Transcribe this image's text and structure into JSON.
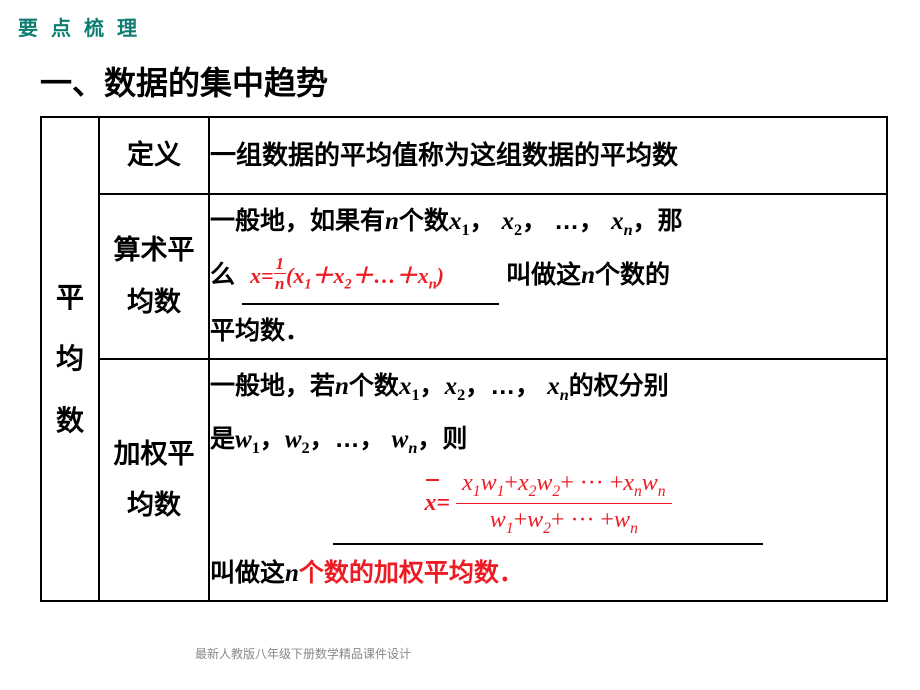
{
  "header": {
    "label": "要 点 梳 理"
  },
  "section": {
    "title": "一、数据的集中趋势"
  },
  "table": {
    "rowspan_label_chars": [
      "平",
      "均",
      "数"
    ],
    "row1": {
      "mid": "定义",
      "right": "一组数据的平均值称为这组数据的平均数"
    },
    "row2": {
      "mid_line1": "算术平",
      "mid_line2": "均数",
      "pre_text_a": "一般地，如果有",
      "n_var": "n",
      "pre_text_b": "个数",
      "seq_prefix": "x",
      "seq_sep": "，",
      "ellipsis": "…",
      "post_text_a": "，那",
      "post_text_b": "么",
      "post_text_c": "叫做这",
      "post_text_d": "个数的",
      "post_text_e": "平均数．",
      "formula": {
        "lhs": "x",
        "eq": "=",
        "one": "1",
        "n": "n",
        "open": "(",
        "terms": "x",
        "plus": "＋",
        "dots": "…",
        "close": ")"
      }
    },
    "row3": {
      "mid_line1": "加权平",
      "mid_line2": "均数",
      "line1_a": "一般地，若",
      "n_var": "n",
      "line1_b": "个数",
      "seq_x": "x",
      "line1_c": "的权分别",
      "line2_a": "是",
      "seq_w": "w",
      "line2_b": "，则",
      "formula": {
        "xbar": "x",
        "eq": "=",
        "x": "x",
        "w": "w",
        "plus": "+",
        "dots": "···",
        "n": "n"
      },
      "last_a": "叫做这",
      "last_n": "n",
      "last_red": "个数的加权平均数．"
    }
  },
  "footer": {
    "note": "最新人教版八年级下册数学精品课件设计"
  },
  "colors": {
    "teal": "#0d7d72",
    "red": "#ed1c24",
    "black": "#000000",
    "gray": "#888888",
    "bg": "#ffffff"
  }
}
